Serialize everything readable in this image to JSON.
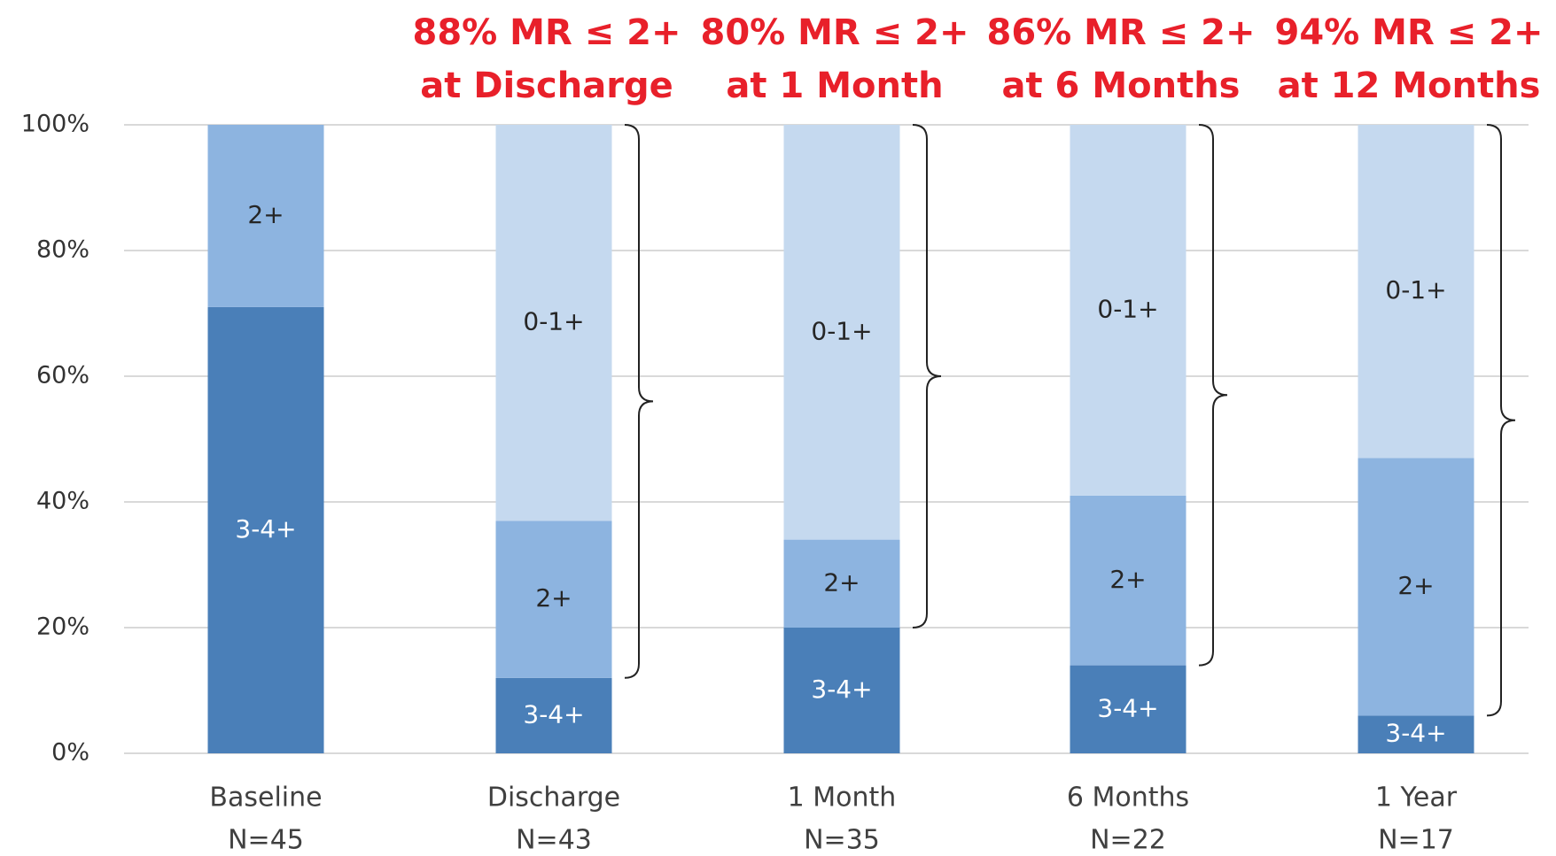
{
  "chart_data": {
    "type": "stacked_bar",
    "categories": [
      "Baseline",
      "Discharge",
      "1 Month",
      "6 Months",
      "1 Year"
    ],
    "sample_sizes": [
      "N=45",
      "N=43",
      "N=35",
      "N=22",
      "N=17"
    ],
    "annotations": [
      null,
      [
        "88% MR ≤ 2+",
        "at Discharge"
      ],
      [
        "80% MR ≤ 2+",
        "at 1 Month"
      ],
      [
        "86% MR ≤ 2+",
        "at 6 Months"
      ],
      [
        "94% MR ≤ 2+",
        "at 12 Months"
      ]
    ],
    "series": [
      {
        "name": "3-4+",
        "color": "#4a7fb8",
        "label_color": "#ffffff",
        "values": [
          71,
          12,
          20,
          14,
          6
        ]
      },
      {
        "name": "2+",
        "color": "#8db4e0",
        "label_color": "#262626",
        "values": [
          29,
          25,
          14,
          27,
          41
        ]
      },
      {
        "name": "0-1+",
        "color": "#c5d9ef",
        "label_color": "#262626",
        "values": [
          0,
          63,
          66,
          59,
          53
        ]
      }
    ],
    "ylim": [
      0,
      100
    ],
    "yticks": [
      {
        "value": 0,
        "label": "0%"
      },
      {
        "value": 20,
        "label": "20%"
      },
      {
        "value": 40,
        "label": "40%"
      },
      {
        "value": 60,
        "label": "60%"
      },
      {
        "value": 80,
        "label": "80%"
      },
      {
        "value": 100,
        "label": "100%"
      }
    ],
    "grid": true
  }
}
